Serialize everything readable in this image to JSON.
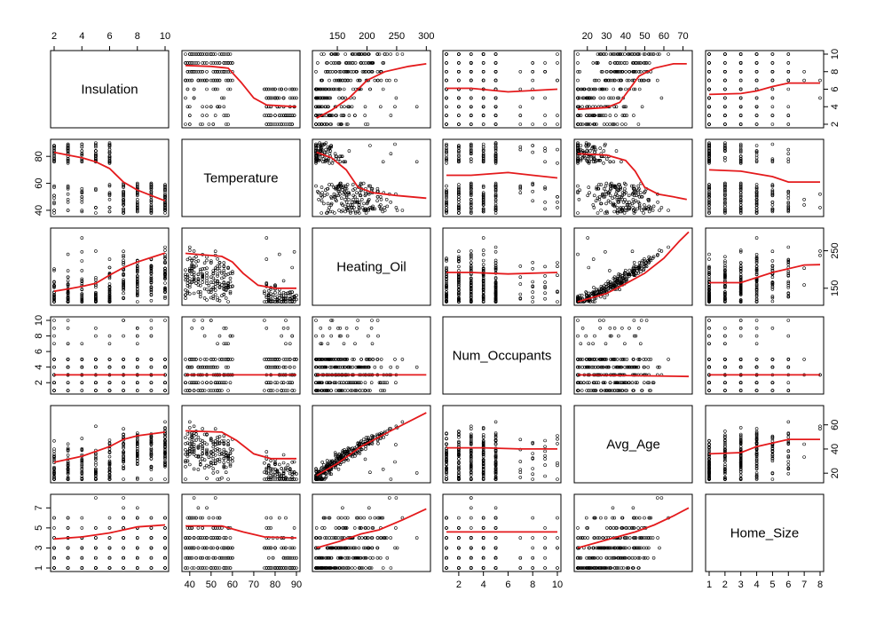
{
  "chart_data": {
    "type": "scatter-matrix",
    "title": "",
    "smoother_color": "#e41a1c",
    "variables": [
      {
        "name": "Insulation",
        "range": [
          2,
          10
        ],
        "ticks": [
          2,
          4,
          6,
          8,
          10
        ]
      },
      {
        "name": "Temperature",
        "range": [
          38,
          90
        ],
        "ticks": [
          40,
          50,
          60,
          70,
          80,
          90
        ],
        "side_ticks": [
          40,
          60,
          80
        ]
      },
      {
        "name": "Heating_Oil",
        "range": [
          114,
          301
        ],
        "ticks": [
          150,
          200,
          250,
          300
        ],
        "side_ticks": [
          150,
          250
        ]
      },
      {
        "name": "Num_Occupants",
        "range": [
          1,
          10
        ],
        "ticks": [
          2,
          4,
          6,
          8,
          10
        ]
      },
      {
        "name": "Avg_Age",
        "range": [
          15,
          73
        ],
        "ticks": [
          20,
          30,
          40,
          50,
          60,
          70
        ],
        "side_ticks": [
          20,
          40,
          60
        ]
      },
      {
        "name": "Home_Size",
        "range": [
          1,
          8
        ],
        "ticks": [
          1,
          2,
          3,
          4,
          5,
          6,
          7,
          8
        ],
        "side_ticks": [
          1,
          3,
          5,
          7
        ]
      }
    ],
    "smoothers": {
      "1_0": [
        [
          2,
          83
        ],
        [
          3,
          81
        ],
        [
          4,
          79
        ],
        [
          5,
          76
        ],
        [
          6,
          71
        ],
        [
          7,
          61
        ],
        [
          8,
          55
        ],
        [
          9,
          51
        ],
        [
          10,
          47
        ]
      ],
      "2_0": [
        [
          2,
          142
        ],
        [
          3,
          148
        ],
        [
          4,
          155
        ],
        [
          5,
          163
        ],
        [
          6,
          185
        ],
        [
          7,
          205
        ],
        [
          8,
          220
        ],
        [
          9,
          232
        ],
        [
          10,
          244
        ]
      ],
      "3_0": [
        [
          2,
          3
        ],
        [
          10,
          3
        ]
      ],
      "4_0": [
        [
          2,
          29
        ],
        [
          4,
          34
        ],
        [
          6,
          42
        ],
        [
          7,
          48
        ],
        [
          8,
          51
        ],
        [
          10,
          54
        ]
      ],
      "5_0": [
        [
          2,
          3.9
        ],
        [
          4,
          4.1
        ],
        [
          6,
          4.5
        ],
        [
          8,
          5.1
        ],
        [
          10,
          5.3
        ]
      ],
      "0_1": [
        [
          38,
          8.7
        ],
        [
          50,
          8.6
        ],
        [
          58,
          8.4
        ],
        [
          64,
          6.8
        ],
        [
          70,
          5
        ],
        [
          76,
          4.2
        ],
        [
          90,
          4
        ]
      ],
      "2_1": [
        [
          38,
          243
        ],
        [
          55,
          235
        ],
        [
          60,
          220
        ],
        [
          65,
          190
        ],
        [
          72,
          158
        ],
        [
          80,
          150
        ],
        [
          90,
          150
        ]
      ],
      "3_1": [
        [
          38,
          3
        ],
        [
          90,
          3
        ]
      ],
      "4_1": [
        [
          38,
          55
        ],
        [
          55,
          54
        ],
        [
          62,
          47
        ],
        [
          70,
          36
        ],
        [
          78,
          32
        ],
        [
          90,
          32
        ]
      ],
      "5_1": [
        [
          38,
          5.2
        ],
        [
          55,
          5.2
        ],
        [
          65,
          4.6
        ],
        [
          75,
          4.1
        ],
        [
          90,
          4
        ]
      ],
      "0_2": [
        [
          115,
          2.7
        ],
        [
          140,
          3.6
        ],
        [
          170,
          5
        ],
        [
          200,
          7
        ],
        [
          230,
          8
        ],
        [
          270,
          8.6
        ],
        [
          300,
          8.9
        ]
      ],
      "1_2": [
        [
          115,
          83
        ],
        [
          140,
          79
        ],
        [
          165,
          70
        ],
        [
          185,
          57
        ],
        [
          210,
          53
        ],
        [
          250,
          51
        ],
        [
          300,
          49
        ]
      ],
      "3_2": [
        [
          115,
          3
        ],
        [
          300,
          3
        ]
      ],
      "4_2": [
        [
          115,
          18
        ],
        [
          150,
          28
        ],
        [
          190,
          42
        ],
        [
          240,
          55
        ],
        [
          300,
          70
        ]
      ],
      "5_2": [
        [
          115,
          3
        ],
        [
          150,
          3.6
        ],
        [
          190,
          4.4
        ],
        [
          220,
          4.8
        ],
        [
          260,
          5.8
        ],
        [
          300,
          6.9
        ]
      ],
      "0_3": [
        [
          1,
          6.1
        ],
        [
          3,
          6.1
        ],
        [
          6,
          5.7
        ],
        [
          10,
          6
        ]
      ],
      "1_3": [
        [
          1,
          66
        ],
        [
          3,
          66
        ],
        [
          6,
          68
        ],
        [
          8,
          66
        ],
        [
          10,
          64
        ]
      ],
      "2_3": [
        [
          1,
          192
        ],
        [
          3,
          192
        ],
        [
          6,
          188
        ],
        [
          10,
          192
        ]
      ],
      "4_3": [
        [
          1,
          41
        ],
        [
          4,
          41
        ],
        [
          7,
          40
        ],
        [
          10,
          40
        ]
      ],
      "5_3": [
        [
          1,
          4.6
        ],
        [
          10,
          4.6
        ]
      ],
      "0_4": [
        [
          15,
          3.7
        ],
        [
          30,
          3.9
        ],
        [
          37,
          4.5
        ],
        [
          42,
          6
        ],
        [
          47,
          7.5
        ],
        [
          55,
          8.4
        ],
        [
          65,
          8.9
        ],
        [
          72,
          8.9
        ]
      ],
      "1_4": [
        [
          15,
          82
        ],
        [
          30,
          81
        ],
        [
          40,
          77
        ],
        [
          45,
          69
        ],
        [
          50,
          57
        ],
        [
          57,
          52
        ],
        [
          65,
          50
        ],
        [
          72,
          48
        ]
      ],
      "2_4": [
        [
          15,
          114
        ],
        [
          30,
          136
        ],
        [
          40,
          162
        ],
        [
          50,
          190
        ],
        [
          60,
          230
        ],
        [
          68,
          275
        ],
        [
          73,
          300
        ]
      ],
      "3_4": [
        [
          15,
          3
        ],
        [
          73,
          2.8
        ]
      ],
      "5_4": [
        [
          15,
          3
        ],
        [
          30,
          3.8
        ],
        [
          45,
          4.6
        ],
        [
          55,
          5.3
        ],
        [
          65,
          6.2
        ],
        [
          73,
          7
        ]
      ],
      "0_5": [
        [
          1,
          5.4
        ],
        [
          3,
          5.5
        ],
        [
          4,
          5.8
        ],
        [
          5,
          6.3
        ],
        [
          6,
          6.7
        ],
        [
          8,
          6.7
        ]
      ],
      "1_5": [
        [
          1,
          70
        ],
        [
          3,
          69
        ],
        [
          5,
          65
        ],
        [
          6,
          61
        ],
        [
          8,
          61
        ]
      ],
      "2_5": [
        [
          1,
          165
        ],
        [
          3,
          165
        ],
        [
          5,
          192
        ],
        [
          7,
          212
        ],
        [
          8,
          213
        ]
      ],
      "3_5": [
        [
          1,
          3
        ],
        [
          8,
          3
        ]
      ],
      "4_5": [
        [
          1,
          36
        ],
        [
          3,
          37
        ],
        [
          4,
          42
        ],
        [
          6,
          48
        ],
        [
          8,
          48
        ]
      ]
    }
  }
}
